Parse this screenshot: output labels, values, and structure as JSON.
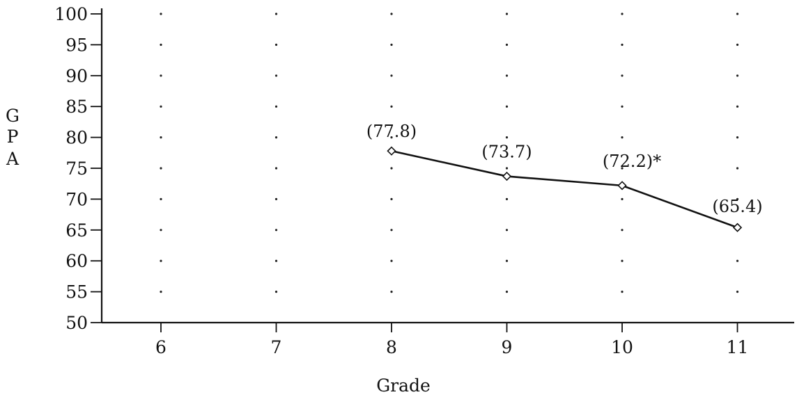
{
  "chart_data": {
    "type": "line",
    "xlabel": "Grade",
    "ylabel": "G P A",
    "ylabel_letters": [
      "G",
      "P",
      "A"
    ],
    "x_ticks": [
      "6",
      "7",
      "8",
      "9",
      "10",
      "11"
    ],
    "y_ticks": [
      "100",
      "95",
      "90",
      "85",
      "80",
      "75",
      "70",
      "65",
      "60",
      "55",
      "50"
    ],
    "xlim": [
      5.5,
      11.5
    ],
    "ylim": [
      50,
      100
    ],
    "grid": "dotted",
    "series": [
      {
        "x": [
          8,
          9,
          10,
          11
        ],
        "values": [
          77.8,
          73.7,
          72.2,
          65.4
        ],
        "labels": [
          "(77.8)",
          "(73.7)",
          "(72.2)*",
          "(65.4)"
        ],
        "marker": "diamond"
      }
    ]
  }
}
